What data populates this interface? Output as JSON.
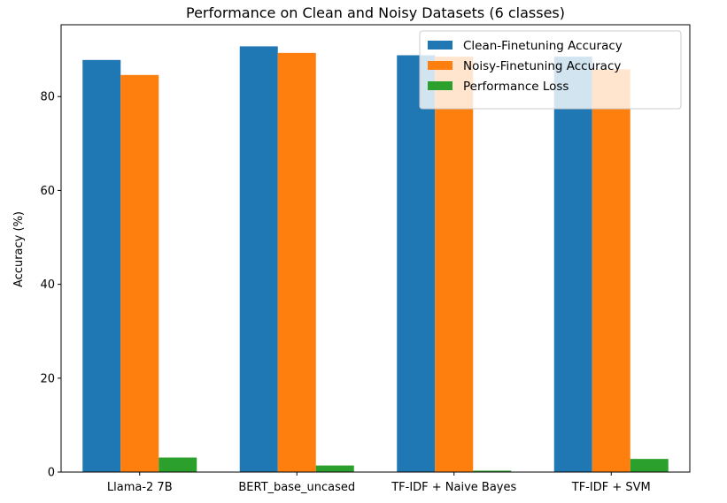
{
  "chart_data": {
    "type": "bar",
    "title": "Performance on Clean and Noisy Datasets (6 classes)",
    "xlabel": "",
    "ylabel": "Accuracy (%)",
    "categories": [
      "Llama-2 7B",
      "BERT_base_uncased",
      "TF-IDF + Naive Bayes",
      "TF-IDF + SVM"
    ],
    "series": [
      {
        "name": "Clean-Finetuning Accuracy",
        "color": "#1f77b4",
        "values": [
          87.8,
          90.7,
          88.8,
          88.5
        ]
      },
      {
        "name": "Noisy-Finetuning Accuracy",
        "color": "#ff7f0e",
        "values": [
          84.6,
          89.3,
          88.5,
          85.8
        ]
      },
      {
        "name": "Performance Loss",
        "color": "#2ca02c",
        "values": [
          3.1,
          1.4,
          0.3,
          2.8
        ]
      }
    ],
    "yticks": [
      0,
      20,
      40,
      60,
      80
    ],
    "ylim": [
      0,
      95.3
    ],
    "grid": false,
    "legend_position": "upper right"
  }
}
